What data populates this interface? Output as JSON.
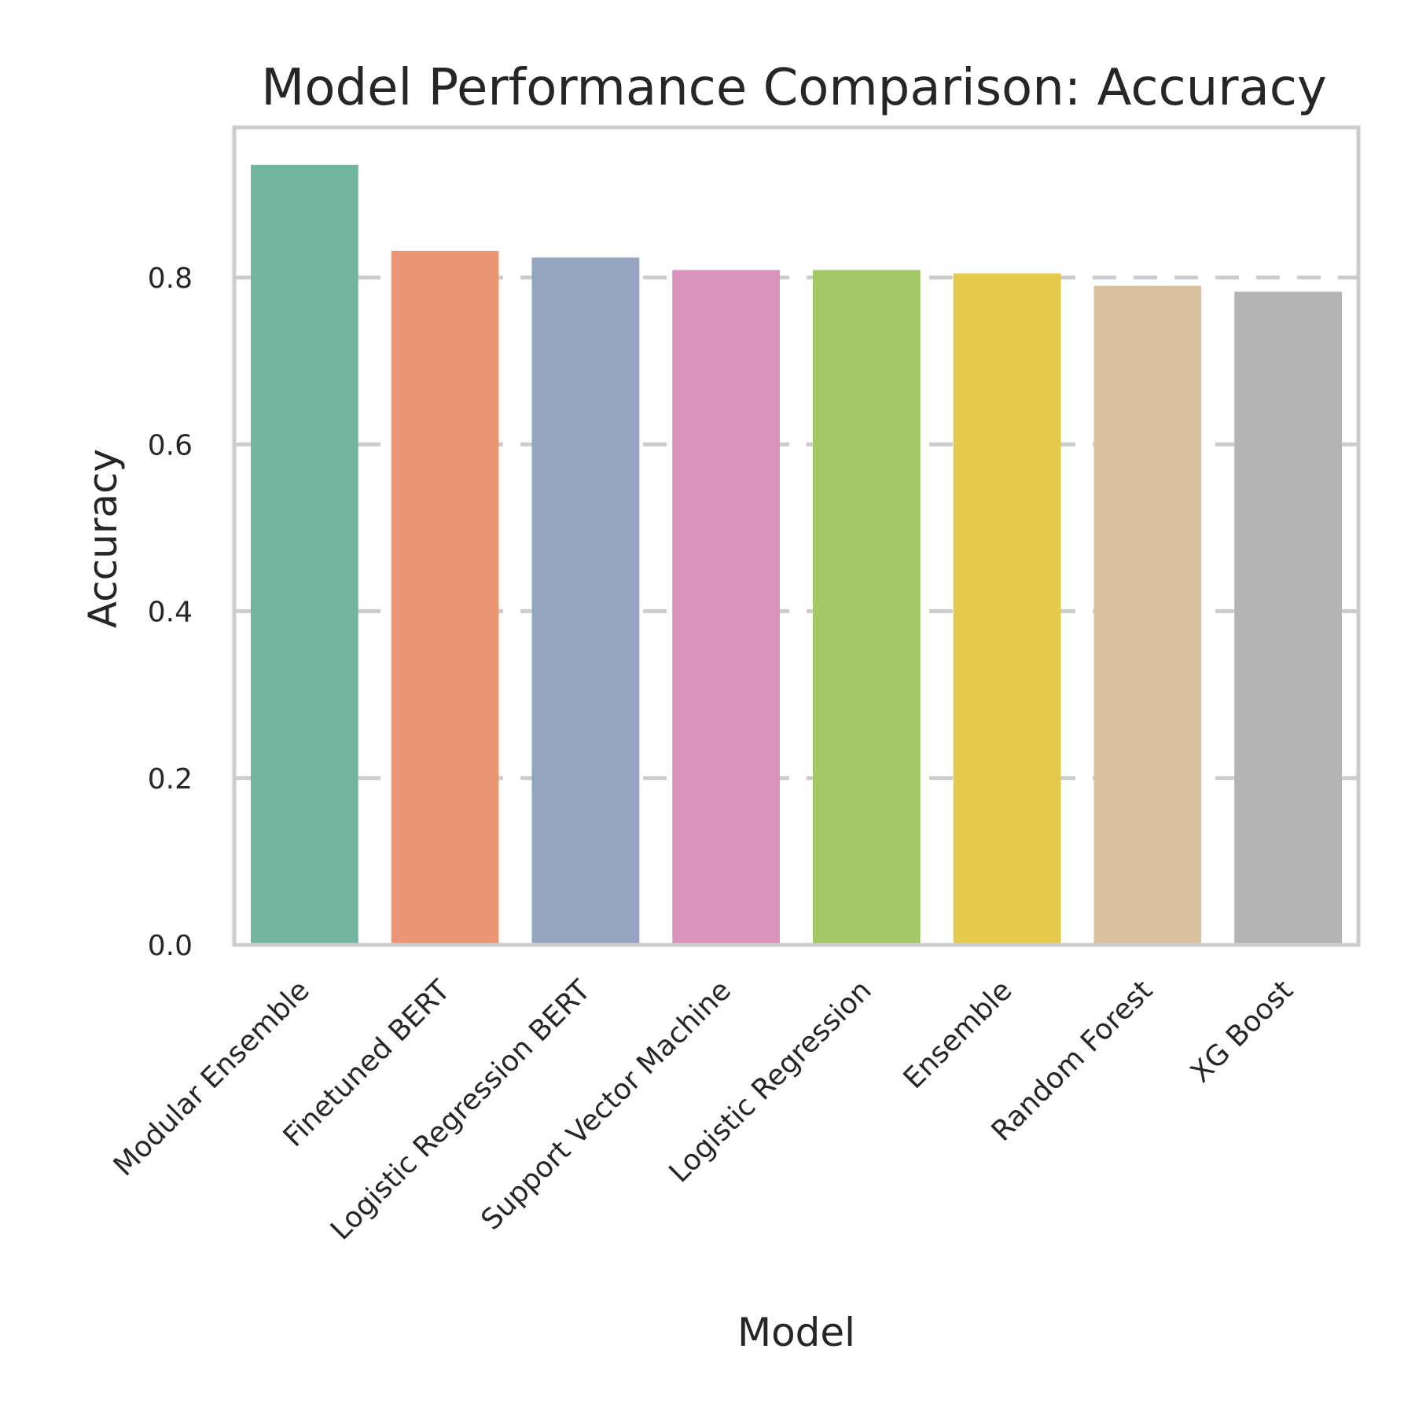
{
  "chart_data": {
    "type": "bar",
    "title": "Model Performance Comparison: Accuracy",
    "xlabel": "Model",
    "ylabel": "Accuracy",
    "ylim": [
      0,
      0.98
    ],
    "yticks": [
      "0.0",
      "0.2",
      "0.4",
      "0.6",
      "0.8"
    ],
    "ytick_values": [
      0.0,
      0.2,
      0.4,
      0.6,
      0.8
    ],
    "grid": true,
    "legend": "none",
    "categories": [
      "Modular Ensemble",
      "Finetuned BERT",
      "Logistic Regression BERT",
      "Support Vector Machine",
      "Logistic Regression",
      "Ensemble",
      "Random Forest",
      "XG Boost"
    ],
    "values": [
      0.935,
      0.832,
      0.824,
      0.809,
      0.809,
      0.805,
      0.79,
      0.783
    ],
    "colors": [
      "#73b6a0",
      "#e89673",
      "#95a4c1",
      "#da95be",
      "#a4c865",
      "#e4ca4b",
      "#dac19d",
      "#b3b3b3"
    ]
  }
}
